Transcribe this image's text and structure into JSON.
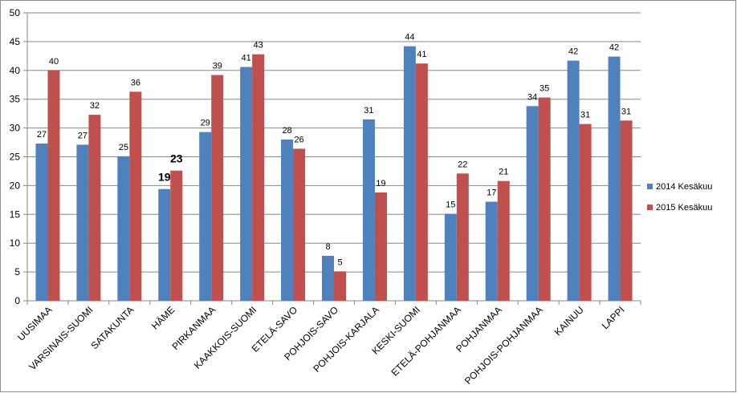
{
  "chart_data": {
    "type": "bar",
    "categories": [
      "UUSIMAA",
      "VARSINAIS-SUOMI",
      "SATAKUNTA",
      "HÄME",
      "PIRKANMAA",
      "KAAKKOIS-SUOMI",
      "ETELÄ-SAVO",
      "POHJOIS-SAVO",
      "POHJOIS-KARJALA",
      "KESKI-SUOMI",
      "ETELÄ-POHJANMAA",
      "POHJANMAA",
      "POHJOIS-POHJANMAA",
      "KAINUU",
      "LAPPI"
    ],
    "series": [
      {
        "name": "2014 Kesäkuu",
        "color": "#4f81bd",
        "values": [
          27.3,
          27.1,
          25.1,
          19.4,
          29.3,
          40.6,
          28.0,
          7.8,
          31.5,
          44.2,
          15.1,
          17.2,
          33.8,
          41.7,
          42.4
        ],
        "labels": [
          "27",
          "27",
          "25",
          "19",
          "29",
          "41",
          "28",
          "8",
          "31",
          "44",
          "15",
          "17",
          "34",
          "42",
          "42"
        ]
      },
      {
        "name": "2015 Kesäkuu",
        "color": "#c0504d",
        "values": [
          40.0,
          32.3,
          36.3,
          22.6,
          39.2,
          42.8,
          26.4,
          5.1,
          18.8,
          41.2,
          22.1,
          20.8,
          35.3,
          30.7,
          31.3
        ],
        "labels": [
          "40",
          "32",
          "36",
          "23",
          "39",
          "43",
          "26",
          "5",
          "19",
          "41",
          "22",
          "21",
          "35",
          "31",
          "31"
        ]
      }
    ],
    "bold_label_category": "HÄME",
    "ylim": [
      0,
      50
    ],
    "yticks": [
      "0",
      "5",
      "10",
      "15",
      "20",
      "25",
      "30",
      "35",
      "40",
      "45",
      "50"
    ],
    "grid": true,
    "legend_position": "right",
    "title": "",
    "xlabel": "",
    "ylabel": ""
  }
}
